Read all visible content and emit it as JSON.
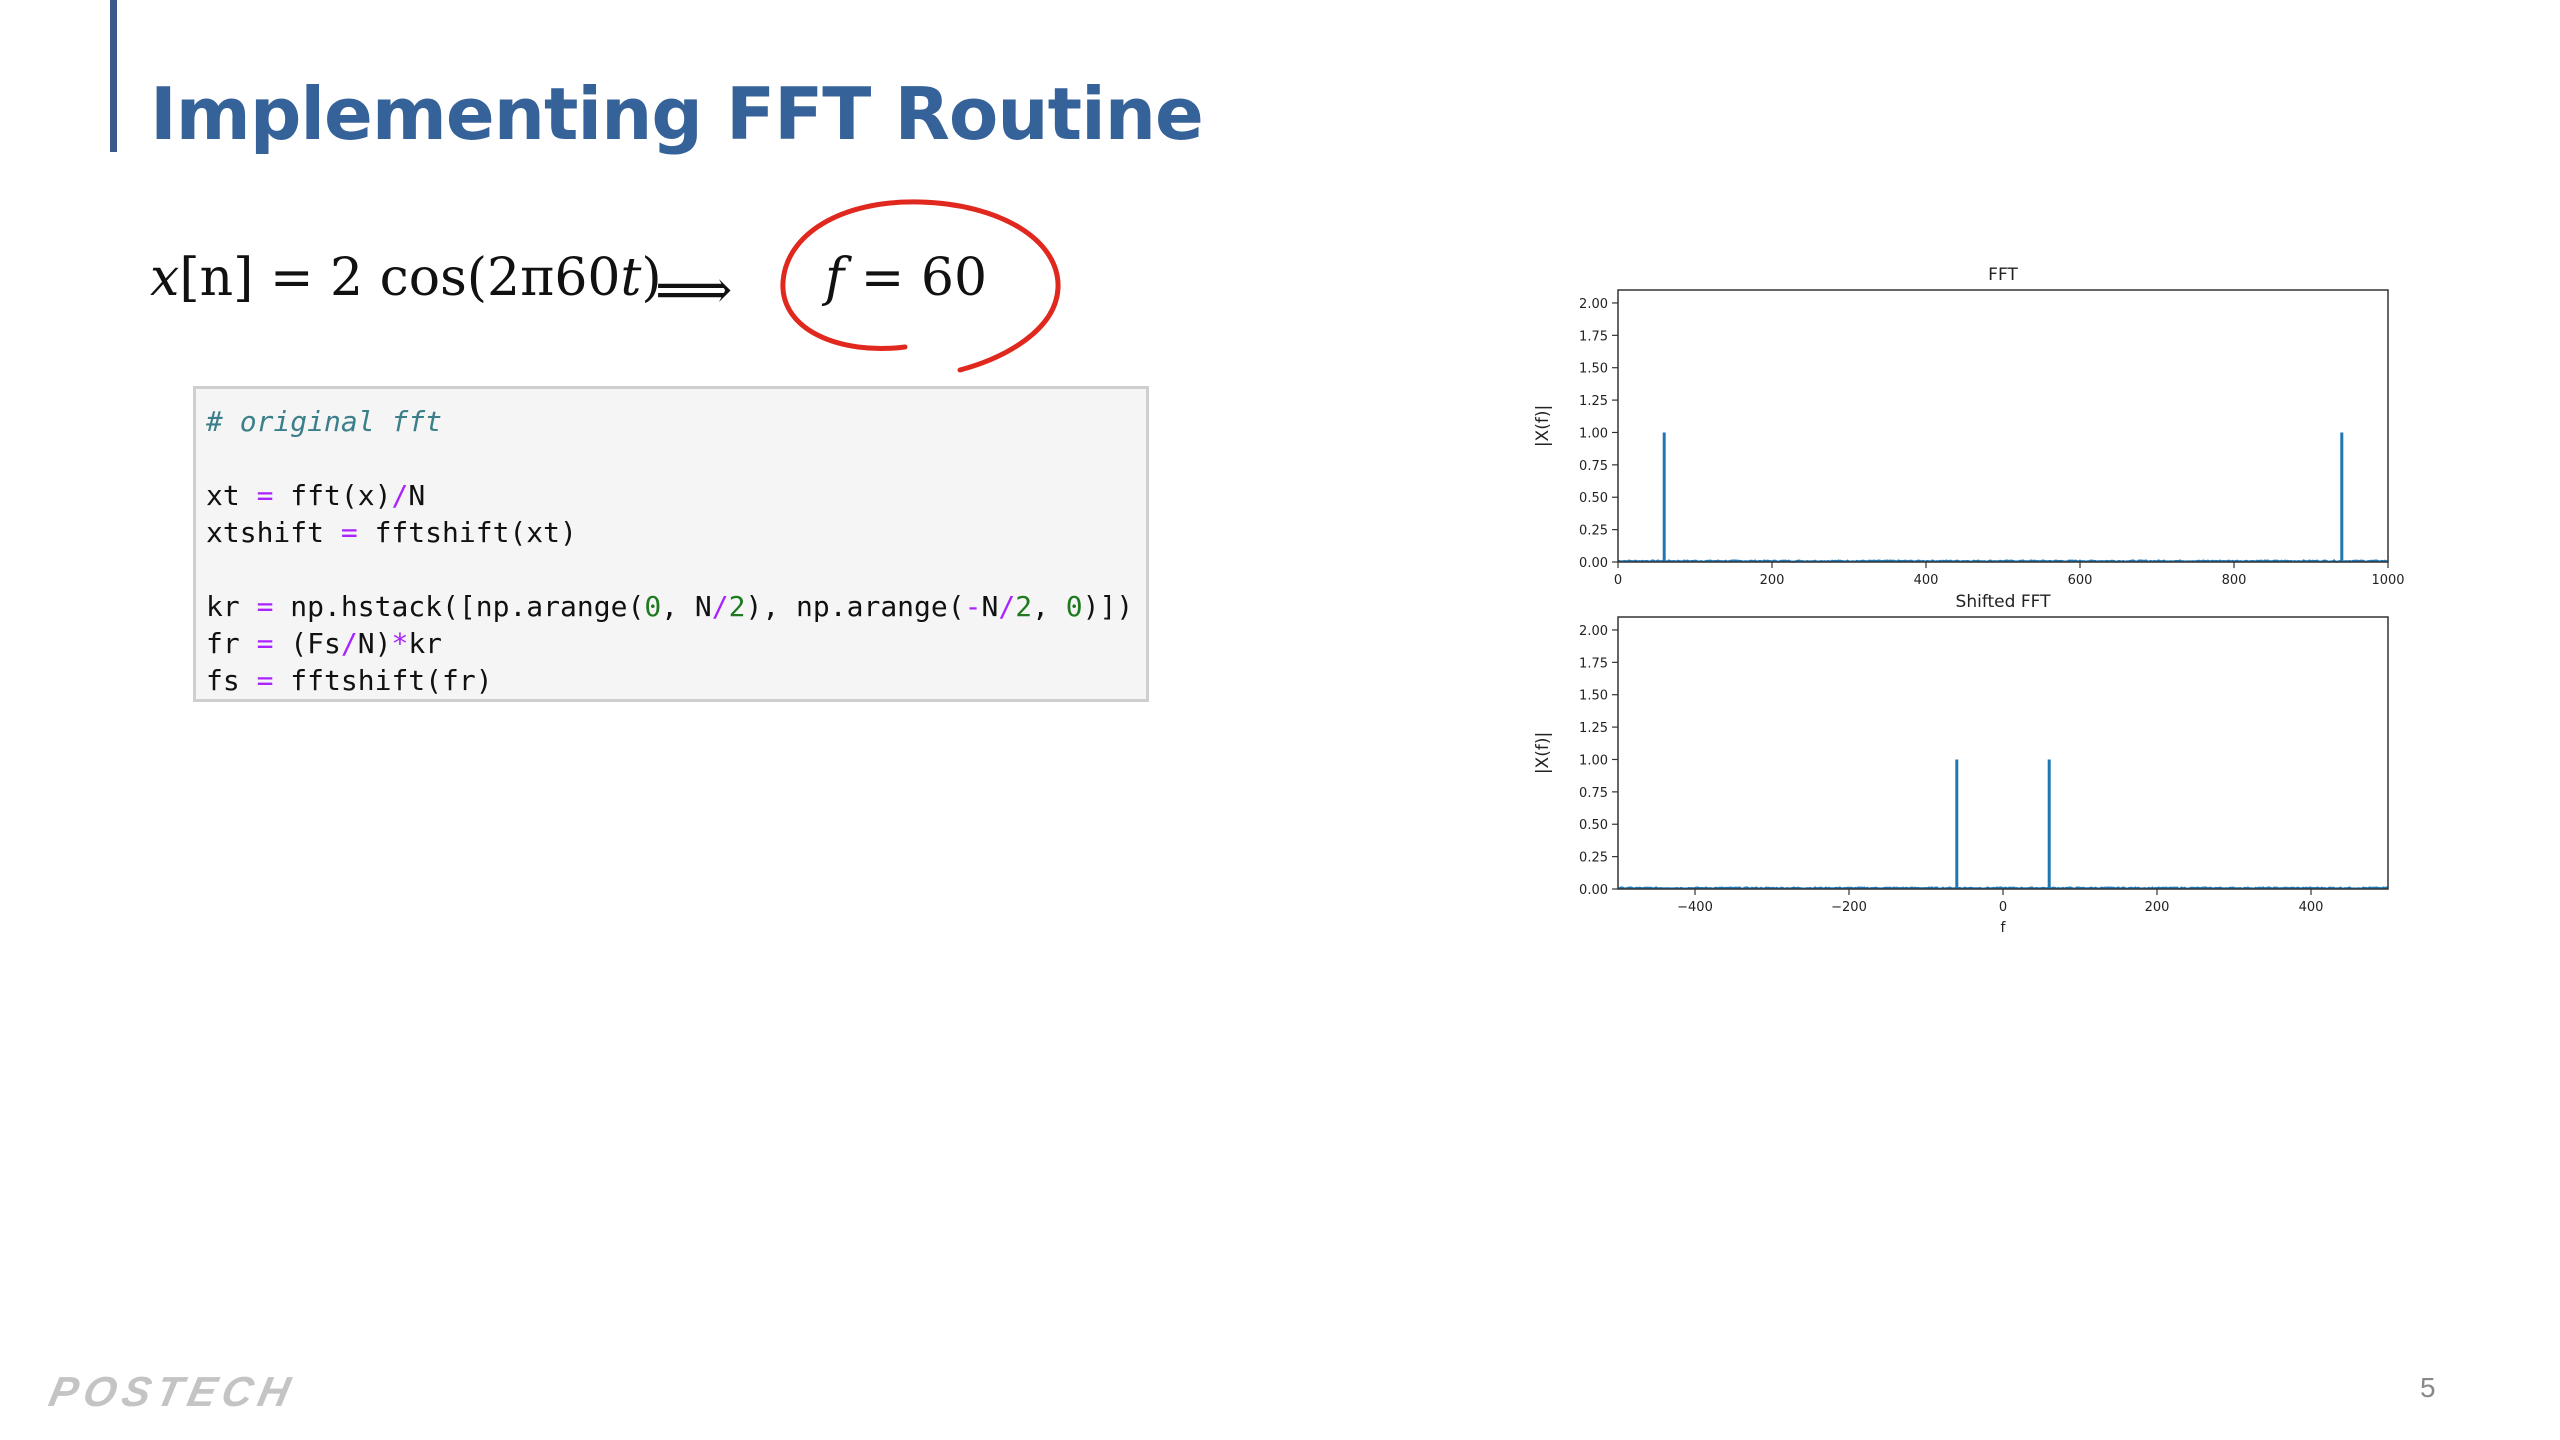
{
  "slide": {
    "title": "Implementing FFT Routine",
    "page_number": "5",
    "logo_text": "POSTECH"
  },
  "equation": {
    "lhs_var": "x",
    "lhs_index": "[n]",
    "lhs_eq": "= 2 cos(2π60",
    "lhs_t": "t",
    "lhs_close": ")",
    "arrow": "⟹",
    "result_var": "f",
    "result_eq": "= 60"
  },
  "code": {
    "comment": "# original fft",
    "lines": [
      {
        "segments": [
          [
            "t",
            "xt "
          ],
          [
            "op",
            "="
          ],
          [
            "t",
            " fft(x)"
          ],
          [
            "op",
            "/"
          ],
          [
            "t",
            "N"
          ]
        ]
      },
      {
        "segments": [
          [
            "t",
            "xtshift "
          ],
          [
            "op",
            "="
          ],
          [
            "t",
            " fftshift(xt)"
          ]
        ]
      },
      {
        "segments": []
      },
      {
        "segments": [
          [
            "t",
            "kr "
          ],
          [
            "op",
            "="
          ],
          [
            "t",
            " np.hstack([np.arange("
          ],
          [
            "num",
            "0"
          ],
          [
            "t",
            ", N"
          ],
          [
            "op",
            "/"
          ],
          [
            "num",
            "2"
          ],
          [
            "t",
            "), np.arange("
          ],
          [
            "op",
            "-"
          ],
          [
            "t",
            "N"
          ],
          [
            "op",
            "/"
          ],
          [
            "num",
            "2"
          ],
          [
            "t",
            ", "
          ],
          [
            "num",
            "0"
          ],
          [
            "t",
            ")])"
          ]
        ]
      },
      {
        "segments": [
          [
            "t",
            "fr "
          ],
          [
            "op",
            "="
          ],
          [
            "t",
            " (Fs"
          ],
          [
            "op",
            "/"
          ],
          [
            "t",
            "N)"
          ],
          [
            "op",
            "*"
          ],
          [
            "t",
            "kr"
          ]
        ]
      },
      {
        "segments": [
          [
            "t",
            "fs "
          ],
          [
            "op",
            "="
          ],
          [
            "t",
            " fftshift(fr)"
          ]
        ]
      }
    ]
  },
  "colors": {
    "title": "#36629a",
    "annotation_circle": "#e0281e",
    "series": "#1f77b4"
  },
  "chart_data": [
    {
      "type": "line",
      "title": "FFT",
      "xlabel": "",
      "ylabel": "|X(f)|",
      "xlim": [
        0,
        1000
      ],
      "ylim": [
        0,
        2.1
      ],
      "xticks": [
        0,
        200,
        400,
        600,
        800,
        1000
      ],
      "xtick_labels": [
        "0",
        "200",
        "400",
        "600",
        "800",
        "1000"
      ],
      "yticks": [
        0,
        0.25,
        0.5,
        0.75,
        1.0,
        1.25,
        1.5,
        1.75,
        2.0
      ],
      "ytick_labels": [
        "0.00",
        "0.25",
        "0.50",
        "0.75",
        "1.00",
        "1.25",
        "1.50",
        "1.75",
        "2.00"
      ],
      "grid": false,
      "peaks": [
        {
          "x": 60,
          "y": 1.0
        },
        {
          "x": 940,
          "y": 1.0
        }
      ],
      "noise_level": 0.01
    },
    {
      "type": "line",
      "title": "Shifted FFT",
      "xlabel": "f",
      "ylabel": "|X(f)|",
      "xlim": [
        -500,
        500
      ],
      "ylim": [
        0,
        2.1
      ],
      "xticks": [
        -400,
        -200,
        0,
        200,
        400
      ],
      "xtick_labels": [
        "−400",
        "−200",
        "0",
        "200",
        "400"
      ],
      "yticks": [
        0,
        0.25,
        0.5,
        0.75,
        1.0,
        1.25,
        1.5,
        1.75,
        2.0
      ],
      "ytick_labels": [
        "0.00",
        "0.25",
        "0.50",
        "0.75",
        "1.00",
        "1.25",
        "1.50",
        "1.75",
        "2.00"
      ],
      "grid": false,
      "peaks": [
        {
          "x": -60,
          "y": 1.0
        },
        {
          "x": 60,
          "y": 1.0
        }
      ],
      "noise_level": 0.01
    }
  ]
}
